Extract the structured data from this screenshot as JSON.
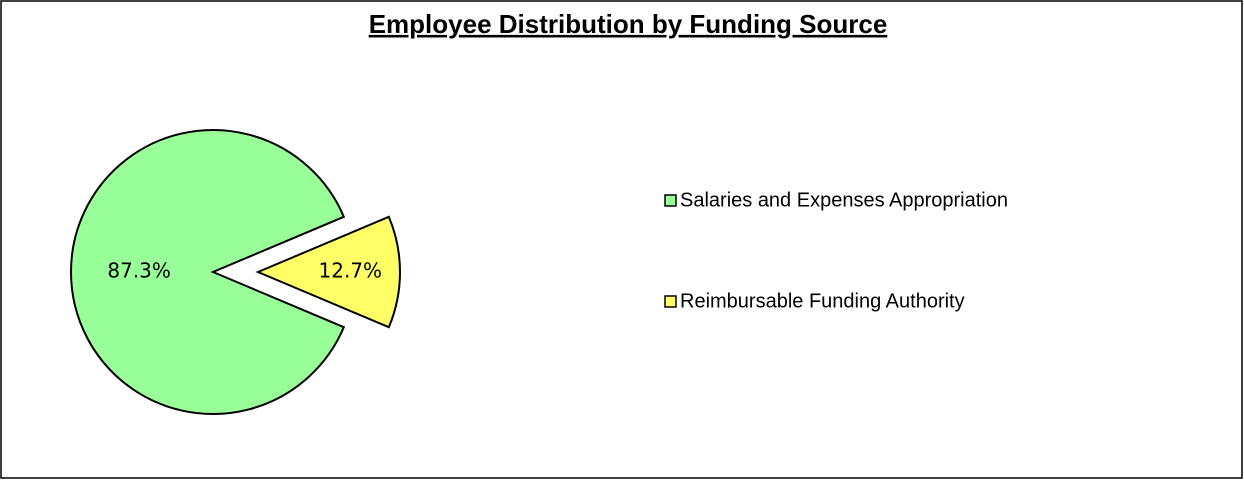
{
  "chart_data": {
    "type": "pie",
    "title": "Employee Distribution by Funding Source",
    "categories": [
      "Salaries and Expenses Appropriation",
      "Reimbursable Funding Authority"
    ],
    "values": [
      87.3,
      12.7
    ],
    "value_labels": [
      "87.3%",
      "12.7%"
    ],
    "colors": [
      "#99ff99",
      "#ffff66"
    ],
    "legend": "right"
  }
}
